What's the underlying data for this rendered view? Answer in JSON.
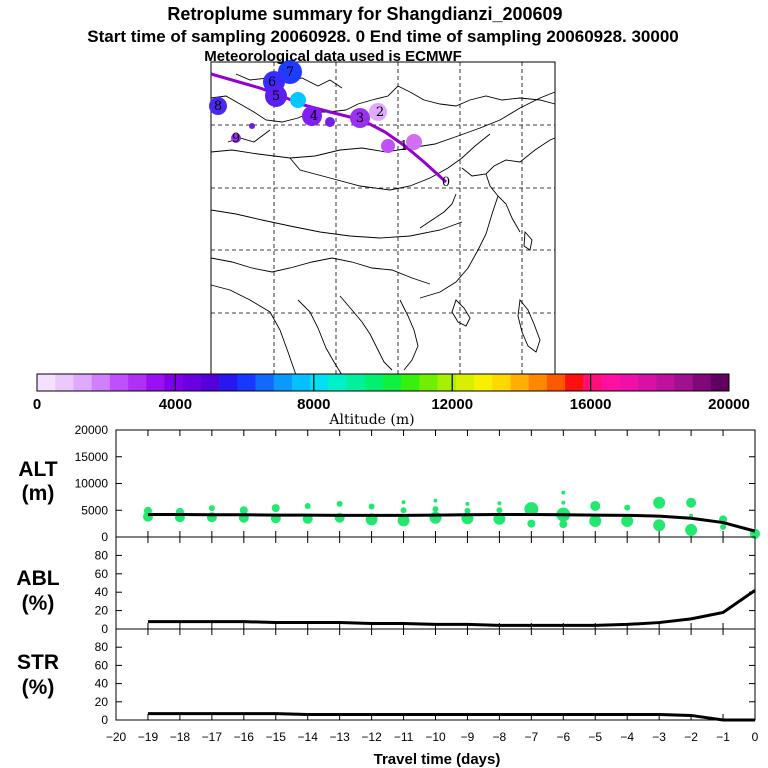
{
  "title": {
    "line1": "Retroplume summary for Shangdianzi_200609",
    "line2": "Start time of sampling 20060928.     0     End time of sampling 20060928. 30000",
    "line3": "Meteorological data used is ECMWF"
  },
  "map": {
    "trajectory_labels": [
      "0",
      "1",
      "2",
      "3",
      "4",
      "5",
      "6",
      "7",
      "8",
      "9"
    ],
    "colors": {
      "plume": "#9400d3",
      "cluster_pink": "#d070f0",
      "cluster_blue": "#1e3cff",
      "cluster_cyan": "#00c8ff"
    }
  },
  "colorbar": {
    "title": "Altitude (m)",
    "tick_labels": [
      "0",
      "4000",
      "8000",
      "12000",
      "16000",
      "20000"
    ],
    "range": [
      0,
      20000
    ],
    "colors": [
      "#f5e0ff",
      "#ecc8ff",
      "#e0a8ff",
      "#d080ff",
      "#c050ff",
      "#b030f5",
      "#9a10f0",
      "#8000e8",
      "#6a00e0",
      "#5500d8",
      "#2818f0",
      "#1838ff",
      "#1468ff",
      "#0c98ff",
      "#04c0ff",
      "#00e0f0",
      "#00f0c8",
      "#00f09c",
      "#00f070",
      "#10f040",
      "#38f010",
      "#70f000",
      "#a8f000",
      "#d8f000",
      "#f8f000",
      "#ffd800",
      "#ffb000",
      "#ff8800",
      "#ff5800",
      "#ff1010",
      "#ff1078",
      "#ff10a0",
      "#f010a8",
      "#d810a8",
      "#c010a0",
      "#a01090",
      "#800878",
      "#600060"
    ]
  },
  "chart_data": [
    {
      "type": "line",
      "panel": "ALT",
      "ylabel_line1": "ALT",
      "ylabel_line2": "(m)",
      "ylim": [
        0,
        20000
      ],
      "yticks": [
        "0",
        "5000",
        "10000",
        "15000",
        "20000"
      ],
      "xlim": [
        -20,
        0
      ],
      "mean_line": {
        "x": [
          -19,
          -18,
          -17,
          -16,
          -15,
          -14,
          -13,
          -12,
          -11,
          -10,
          -9,
          -8,
          -7,
          -6,
          -5,
          -4,
          -3,
          -2,
          -1,
          0
        ],
        "y": [
          4200,
          4200,
          4150,
          4150,
          4100,
          4100,
          4050,
          4050,
          4050,
          4100,
          4150,
          4200,
          4200,
          4150,
          4100,
          4050,
          3900,
          3500,
          2700,
          1100
        ]
      },
      "clusters": {
        "color": "#22e870",
        "points": [
          {
            "x": -19,
            "y": 4900,
            "s": 4
          },
          {
            "x": -19,
            "y": 3800,
            "s": 5
          },
          {
            "x": -18,
            "y": 4700,
            "s": 4
          },
          {
            "x": -18,
            "y": 3700,
            "s": 5
          },
          {
            "x": -17,
            "y": 5400,
            "s": 3
          },
          {
            "x": -17,
            "y": 3700,
            "s": 5
          },
          {
            "x": -16,
            "y": 5000,
            "s": 4
          },
          {
            "x": -16,
            "y": 3600,
            "s": 5
          },
          {
            "x": -15,
            "y": 5400,
            "s": 4
          },
          {
            "x": -15,
            "y": 3500,
            "s": 5
          },
          {
            "x": -14,
            "y": 5800,
            "s": 3
          },
          {
            "x": -14,
            "y": 3400,
            "s": 5
          },
          {
            "x": -13,
            "y": 6200,
            "s": 3
          },
          {
            "x": -13,
            "y": 3600,
            "s": 5
          },
          {
            "x": -12,
            "y": 5700,
            "s": 3
          },
          {
            "x": -12,
            "y": 3300,
            "s": 6
          },
          {
            "x": -11,
            "y": 6500,
            "s": 2
          },
          {
            "x": -11,
            "y": 5000,
            "s": 3
          },
          {
            "x": -11,
            "y": 3100,
            "s": 6
          },
          {
            "x": -10,
            "y": 6800,
            "s": 2
          },
          {
            "x": -10,
            "y": 5200,
            "s": 3
          },
          {
            "x": -10,
            "y": 3600,
            "s": 6
          },
          {
            "x": -9,
            "y": 6200,
            "s": 2
          },
          {
            "x": -9,
            "y": 4900,
            "s": 3
          },
          {
            "x": -9,
            "y": 3500,
            "s": 6
          },
          {
            "x": -8,
            "y": 6300,
            "s": 2
          },
          {
            "x": -8,
            "y": 5000,
            "s": 3
          },
          {
            "x": -8,
            "y": 3400,
            "s": 6
          },
          {
            "x": -7,
            "y": 5200,
            "s": 7
          },
          {
            "x": -7,
            "y": 2500,
            "s": 4
          },
          {
            "x": -6,
            "y": 8300,
            "s": 2
          },
          {
            "x": -6,
            "y": 6400,
            "s": 2
          },
          {
            "x": -6,
            "y": 4200,
            "s": 7
          },
          {
            "x": -6,
            "y": 2400,
            "s": 4
          },
          {
            "x": -5,
            "y": 5800,
            "s": 5
          },
          {
            "x": -5,
            "y": 3000,
            "s": 6
          },
          {
            "x": -4,
            "y": 5500,
            "s": 3
          },
          {
            "x": -4,
            "y": 3000,
            "s": 6
          },
          {
            "x": -3,
            "y": 6400,
            "s": 6
          },
          {
            "x": -3,
            "y": 2200,
            "s": 6
          },
          {
            "x": -2,
            "y": 6400,
            "s": 5
          },
          {
            "x": -2,
            "y": 4000,
            "s": 2
          },
          {
            "x": -2,
            "y": 1300,
            "s": 6
          },
          {
            "x": -1,
            "y": 3300,
            "s": 4
          },
          {
            "x": -1,
            "y": 1900,
            "s": 3
          },
          {
            "x": 0,
            "y": 600,
            "s": 5
          }
        ]
      }
    },
    {
      "type": "line",
      "panel": "ABL",
      "ylabel_line1": "ABL",
      "ylabel_line2": "(%)",
      "ylim": [
        0,
        100
      ],
      "yticks": [
        "0",
        "20",
        "40",
        "60",
        "80"
      ],
      "xlim": [
        -20,
        0
      ],
      "x": [
        -19,
        -18,
        -17,
        -16,
        -15,
        -14,
        -13,
        -12,
        -11,
        -10,
        -9,
        -8,
        -7,
        -6,
        -5,
        -4,
        -3,
        -2,
        -1,
        0
      ],
      "y": [
        8,
        8,
        8,
        8,
        7,
        7,
        7,
        6,
        6,
        5,
        5,
        4,
        4,
        4,
        4,
        5,
        7,
        11,
        18,
        42
      ]
    },
    {
      "type": "line",
      "panel": "STR",
      "ylabel_line1": "STR",
      "ylabel_line2": "(%)",
      "ylim": [
        0,
        100
      ],
      "yticks": [
        "0",
        "20",
        "40",
        "60",
        "80"
      ],
      "xlim": [
        -20,
        0
      ],
      "xlabel": "Travel time (days)",
      "xticks": [
        "−20",
        "−19",
        "−18",
        "−17",
        "−16",
        "−15",
        "−14",
        "−13",
        "−12",
        "−11",
        "−10",
        "−9",
        "−8",
        "−7",
        "−6",
        "−5",
        "−4",
        "−3",
        "−2",
        "−1",
        "0"
      ],
      "x": [
        -19,
        -18,
        -17,
        -16,
        -15,
        -14,
        -13,
        -12,
        -11,
        -10,
        -9,
        -8,
        -7,
        -6,
        -5,
        -4,
        -3,
        -2,
        -1,
        0
      ],
      "y": [
        7,
        7,
        7,
        7,
        7,
        6,
        6,
        6,
        6,
        6,
        6,
        6,
        6,
        6,
        6,
        6,
        6,
        5,
        0,
        0
      ]
    }
  ]
}
